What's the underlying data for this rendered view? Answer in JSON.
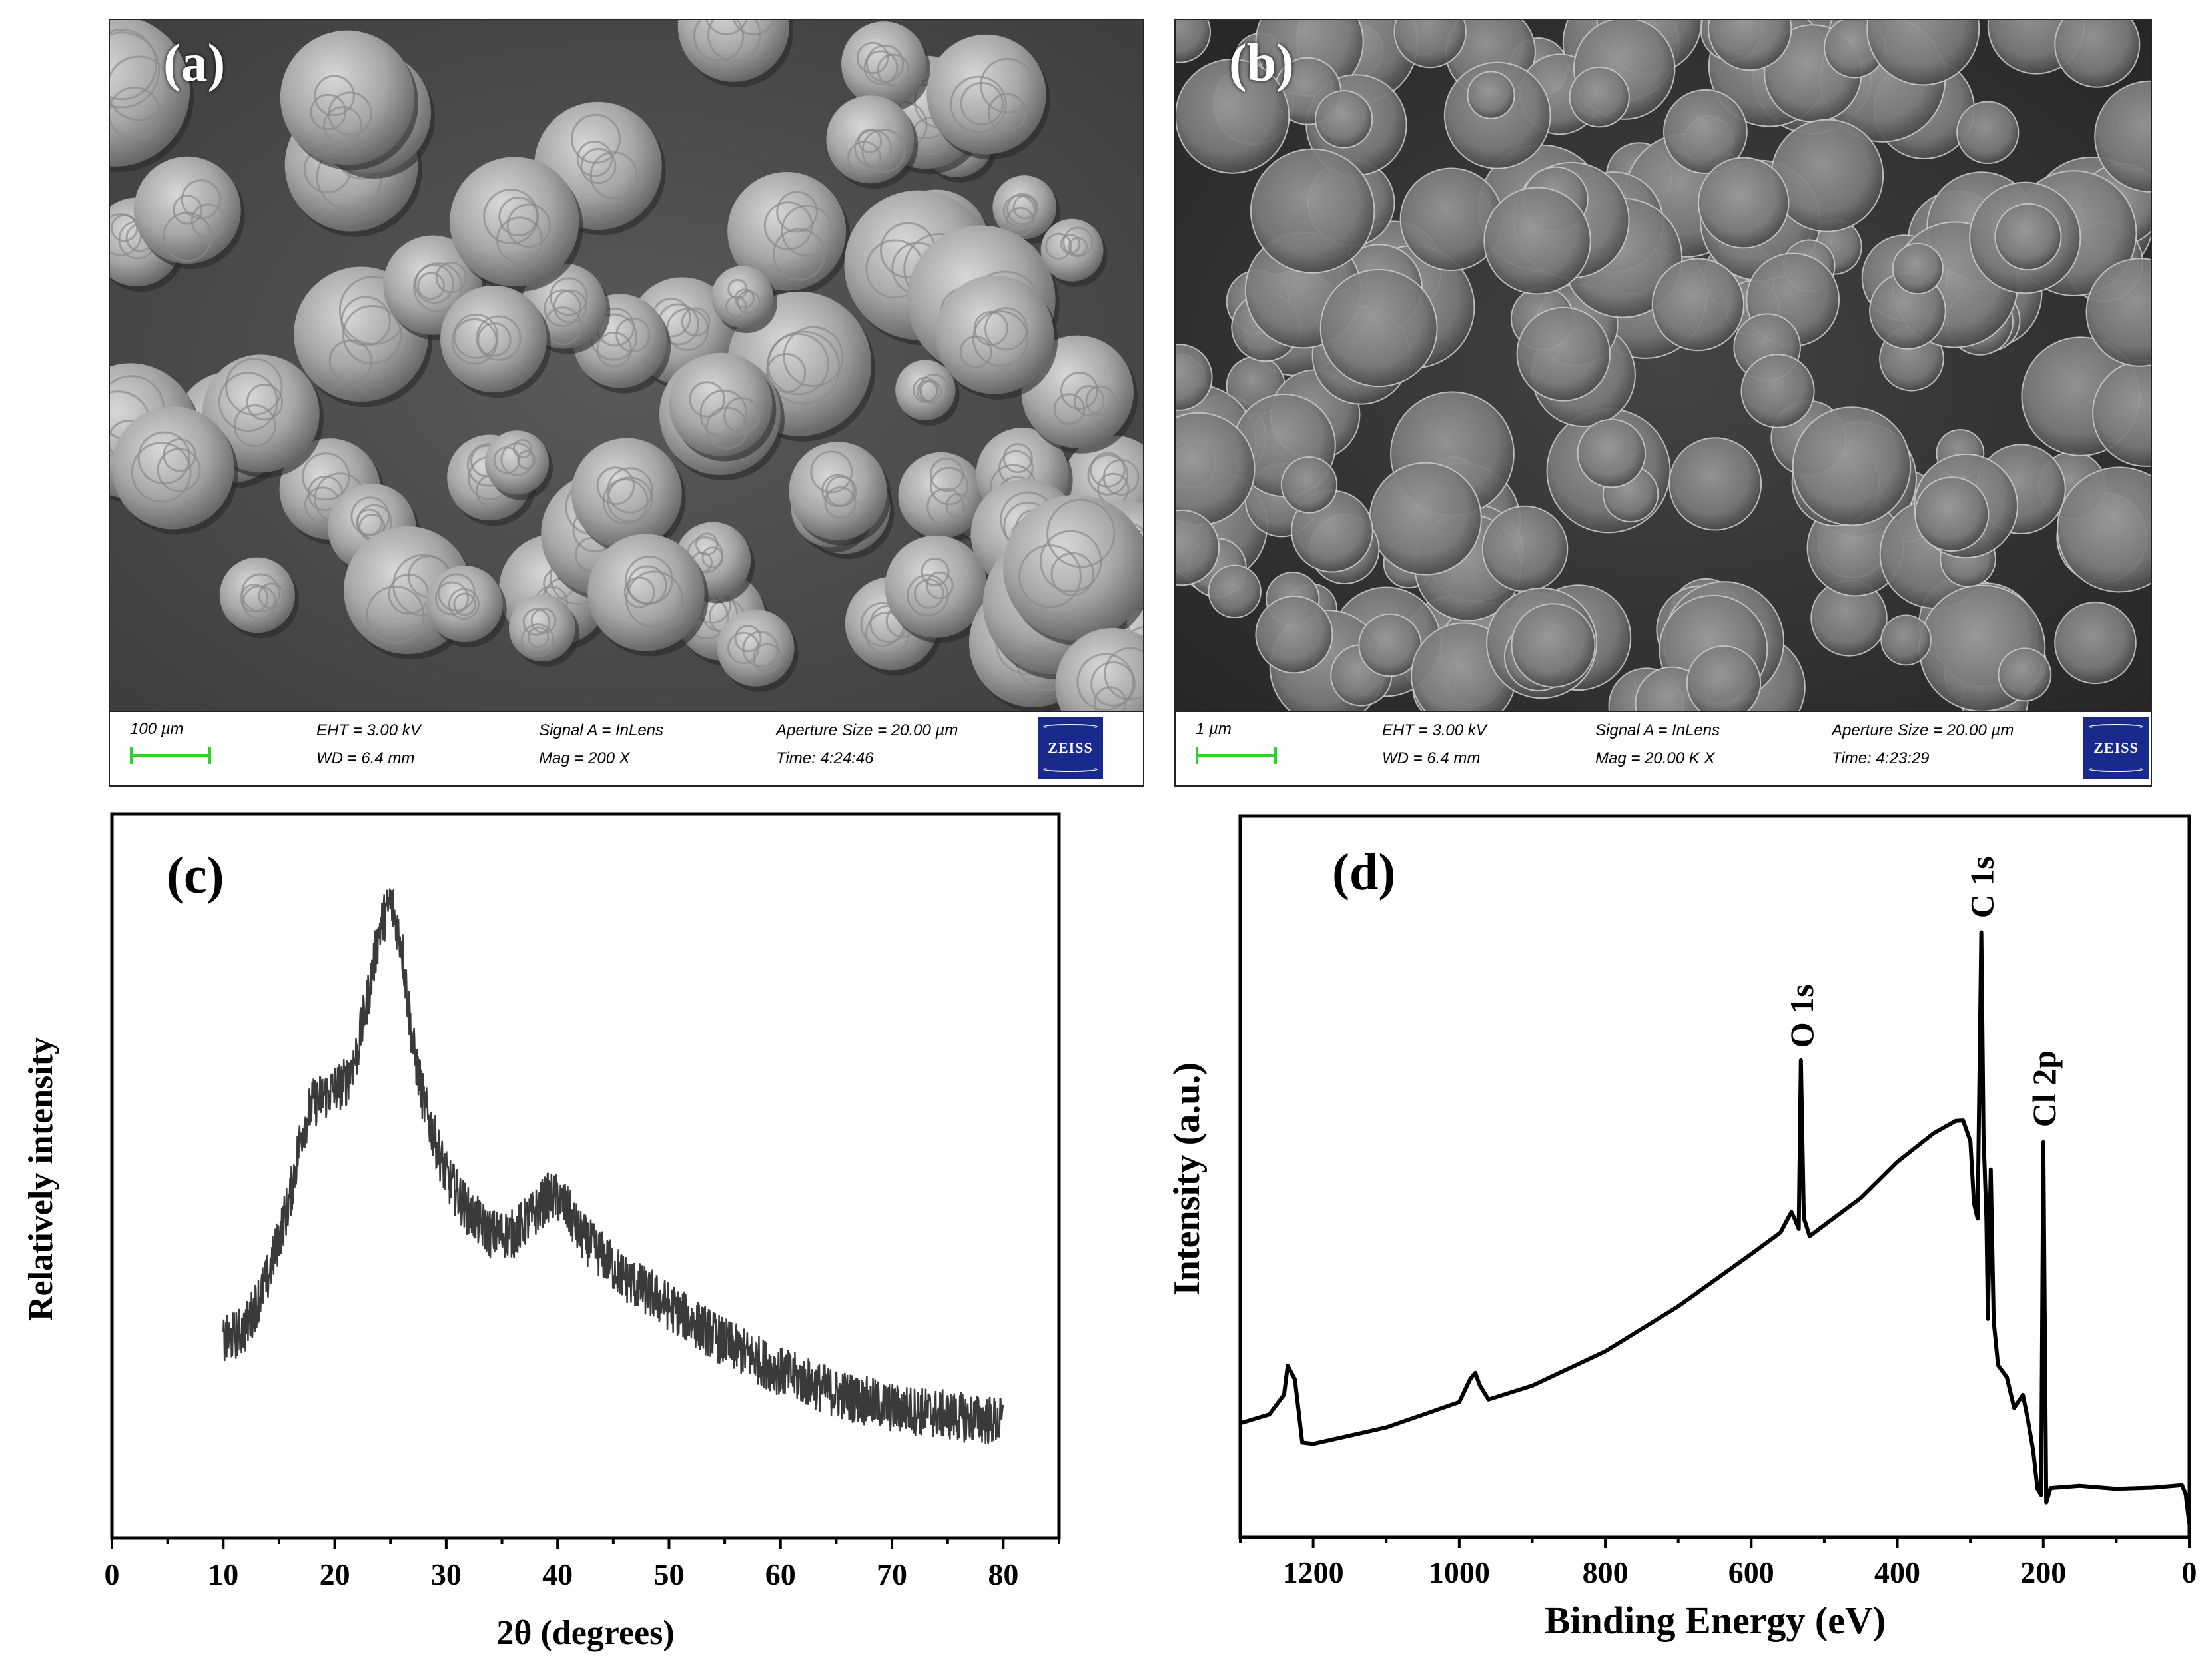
{
  "panels": {
    "a": {
      "label": "(a)",
      "scale_label": "100 µm",
      "eht": "EHT = 3.00 kV",
      "wd": "WD = 6.4 mm",
      "signal": "Signal A = InLens",
      "mag": "Mag = 200 X",
      "aperture": "Aperture Size = 20.00 µm",
      "time": "Time: 4:24:46",
      "logo": "ZEISS"
    },
    "b": {
      "label": "(b)",
      "scale_label": "1 µm",
      "eht": "EHT = 3.00 kV",
      "wd": "WD = 6.4 mm",
      "signal": "Signal A = InLens",
      "mag": "Mag = 20.00 K X",
      "aperture": "Aperture Size = 20.00 µm",
      "time": "Time: 4:23:29",
      "logo": "ZEISS"
    }
  },
  "chart_data": [
    {
      "panel": "(c)",
      "type": "line",
      "xlabel": "2θ (degrees)",
      "ylabel": "Relatively intensity",
      "xlim": [
        0,
        85
      ],
      "ylim": [
        0,
        1
      ],
      "xticks": [
        0,
        10,
        20,
        30,
        40,
        50,
        60,
        70,
        80
      ],
      "yticks_shown": false,
      "series": [
        {
          "x": [
            10,
            12,
            14,
            16,
            17,
            18,
            19,
            20,
            21,
            22,
            23,
            24,
            25,
            26,
            27,
            28,
            30,
            32,
            34,
            36,
            38,
            39,
            40,
            41,
            42,
            44,
            46,
            50,
            55,
            60,
            65,
            70,
            75,
            80
          ],
          "y": [
            0.27,
            0.29,
            0.36,
            0.47,
            0.56,
            0.6,
            0.61,
            0.62,
            0.63,
            0.67,
            0.75,
            0.84,
            0.88,
            0.82,
            0.68,
            0.6,
            0.5,
            0.45,
            0.42,
            0.42,
            0.45,
            0.47,
            0.47,
            0.45,
            0.42,
            0.39,
            0.36,
            0.32,
            0.27,
            0.23,
            0.2,
            0.18,
            0.17,
            0.16
          ],
          "noise": 0.035
        }
      ]
    },
    {
      "panel": "(d)",
      "type": "line",
      "xlabel": "Binding Energy (eV)",
      "ylabel": "Intensity (a.u.)",
      "xlim": [
        1300,
        0
      ],
      "ylim": [
        0,
        1
      ],
      "xticks": [
        1200,
        1000,
        800,
        600,
        400,
        200,
        0
      ],
      "yticks_shown": false,
      "annotations": [
        {
          "text": "O 1s",
          "x": 532
        },
        {
          "text": "C 1s",
          "x": 285
        },
        {
          "text": "Cl 2p",
          "x": 200
        }
      ],
      "series": [
        {
          "x": [
            1300,
            1260,
            1240,
            1235,
            1225,
            1215,
            1200,
            1100,
            1000,
            985,
            978,
            972,
            960,
            900,
            800,
            700,
            600,
            560,
            545,
            540,
            535,
            532,
            528,
            520,
            500,
            450,
            400,
            350,
            320,
            310,
            300,
            295,
            290,
            285,
            282,
            278,
            276,
            272,
            268,
            262,
            250,
            240,
            228,
            222,
            214,
            208,
            203,
            200,
            196,
            190,
            150,
            100,
            50,
            10,
            5,
            0
          ],
          "y": [
            0.16,
            0.17,
            0.2,
            0.24,
            0.22,
            0.13,
            0.13,
            0.15,
            0.19,
            0.22,
            0.23,
            0.21,
            0.19,
            0.21,
            0.26,
            0.32,
            0.39,
            0.42,
            0.45,
            0.44,
            0.43,
            0.66,
            0.44,
            0.42,
            0.43,
            0.47,
            0.52,
            0.56,
            0.58,
            0.58,
            0.55,
            0.46,
            0.44,
            0.84,
            0.56,
            0.44,
            0.3,
            0.51,
            0.3,
            0.24,
            0.22,
            0.18,
            0.2,
            0.17,
            0.12,
            0.07,
            0.06,
            0.55,
            0.05,
            0.07,
            0.07,
            0.07,
            0.07,
            0.07,
            0.06,
            0.02
          ]
        }
      ]
    }
  ]
}
